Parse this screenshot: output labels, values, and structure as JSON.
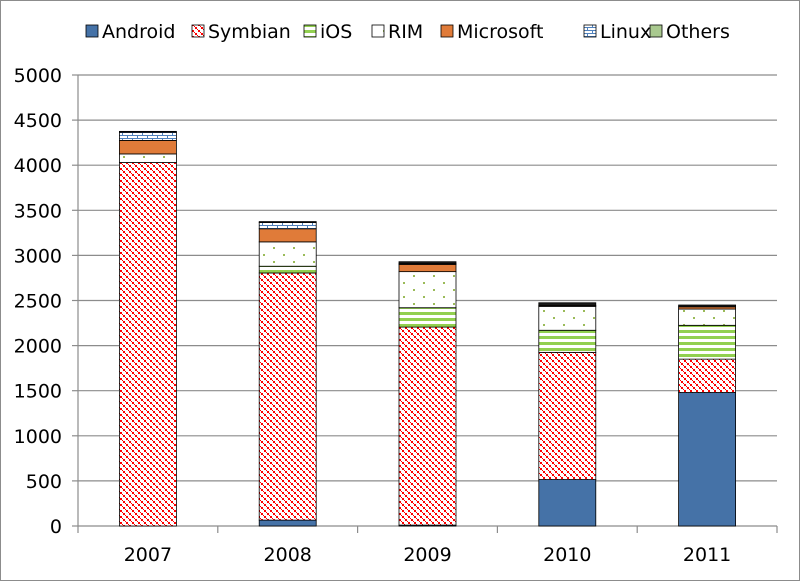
{
  "chart_data": {
    "type": "bar",
    "stacked": true,
    "title": "",
    "xlabel": "",
    "ylabel": "",
    "categories": [
      "2007",
      "2008",
      "2009",
      "2010",
      "2011"
    ],
    "ylim": [
      0,
      5000
    ],
    "yticks": [
      0,
      500,
      1000,
      1500,
      2000,
      2500,
      3000,
      3500,
      4000,
      4500,
      5000
    ],
    "grid": true,
    "legend_position": "top",
    "series": [
      {
        "name": "Android",
        "color": "#4572a7",
        "pattern": "solid",
        "values": [
          0,
          65,
          10,
          515,
          1480
        ]
      },
      {
        "name": "Symbian",
        "color": "#ff0000",
        "pattern": "checker",
        "values": [
          4030,
          2740,
          2195,
          1410,
          370
        ]
      },
      {
        "name": "iOS",
        "color": "#92d050",
        "pattern": "hstripes",
        "values": [
          0,
          75,
          215,
          245,
          375
        ]
      },
      {
        "name": "RIM",
        "color": "#9bbb59",
        "pattern": "dots",
        "values": [
          95,
          270,
          400,
          265,
          180
        ]
      },
      {
        "name": "Microsoft",
        "color": "#e07b39",
        "pattern": "solid",
        "values": [
          150,
          145,
          80,
          10,
          25
        ]
      },
      {
        "name": "Linux",
        "color": "#4f81bd",
        "pattern": "brick",
        "values": [
          90,
          70,
          10,
          0,
          0
        ]
      },
      {
        "name": "Others",
        "color": "#a9c98f",
        "pattern": "solid-dark",
        "values": [
          10,
          10,
          20,
          30,
          20
        ]
      }
    ]
  }
}
